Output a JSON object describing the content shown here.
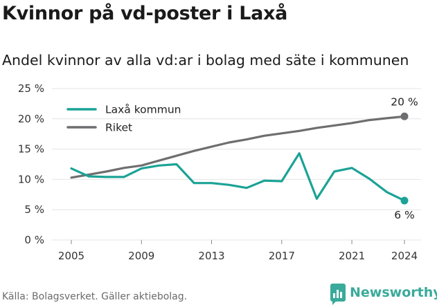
{
  "header": {
    "title": "Kvinnor på vd-poster i Laxå",
    "subtitle": "Andel kvinnor av alla vd:ar i bolag med säte i kommunen"
  },
  "footer": {
    "source": "Källa: Bolagsverket. Gäller aktiebolag.",
    "brand": "Newsworthy"
  },
  "colors": {
    "laxa": "#1aa396",
    "riket": "#6e6e70",
    "grid": "#e4e4e4",
    "brand": "#3aaa9a"
  },
  "chart_data": {
    "type": "line",
    "xlim": [
      2005,
      2024
    ],
    "ylim": [
      0,
      25
    ],
    "x_ticks": [
      2005,
      2009,
      2013,
      2017,
      2021,
      2024
    ],
    "y_ticks": [
      0,
      5,
      10,
      15,
      20,
      25
    ],
    "y_tick_labels": [
      "0 %",
      "5 %",
      "10 %",
      "15 %",
      "20 %",
      "25 %"
    ],
    "grid": "horizontal",
    "legend_position": "top-left",
    "x": [
      2005,
      2006,
      2007,
      2008,
      2009,
      2010,
      2011,
      2012,
      2013,
      2014,
      2015,
      2016,
      2017,
      2018,
      2019,
      2020,
      2021,
      2022,
      2023,
      2024
    ],
    "series": [
      {
        "name": "Laxå kommun",
        "color": "#1aa396",
        "end_label": "6 %",
        "values": [
          11.8,
          10.5,
          10.4,
          10.4,
          11.8,
          12.3,
          12.5,
          9.4,
          9.4,
          9.1,
          8.6,
          9.8,
          9.7,
          14.3,
          6.8,
          11.3,
          11.9,
          10.1,
          7.9,
          6.5
        ]
      },
      {
        "name": "Riket",
        "color": "#6e6e70",
        "end_label": "20 %",
        "values": [
          10.3,
          10.8,
          11.3,
          11.9,
          12.3,
          13.1,
          13.9,
          14.7,
          15.4,
          16.1,
          16.6,
          17.2,
          17.6,
          18.0,
          18.5,
          18.9,
          19.3,
          19.8,
          20.1,
          20.4
        ]
      }
    ]
  }
}
